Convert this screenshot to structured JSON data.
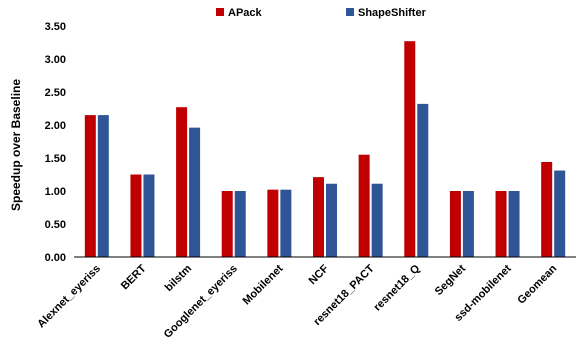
{
  "chart_data": {
    "type": "bar",
    "title": "",
    "xlabel": "",
    "ylabel": "Speedup over Baseline",
    "ylim": [
      0,
      3.5
    ],
    "yticks": [
      "0.00",
      "0.50",
      "1.00",
      "1.50",
      "2.00",
      "2.50",
      "3.00",
      "3.50"
    ],
    "grid": false,
    "legend_position": "top",
    "categories": [
      "Alexnet_eyeriss",
      "BERT",
      "bilstm",
      "Googlenet_eyeriss",
      "Mobilenet",
      "NCF",
      "resnet18_PACT",
      "resnet18_Q",
      "SegNet",
      "ssd-mobilenet",
      "Geomean"
    ],
    "series": [
      {
        "name": "APack",
        "color": "#c00000",
        "values": [
          2.15,
          1.25,
          2.27,
          1.0,
          1.02,
          1.21,
          1.55,
          3.27,
          1.0,
          1.0,
          1.44
        ]
      },
      {
        "name": "ShapeShifter",
        "color": "#2f5597",
        "values": [
          2.15,
          1.25,
          1.96,
          1.0,
          1.02,
          1.11,
          1.11,
          2.32,
          1.0,
          1.0,
          1.31
        ]
      }
    ]
  }
}
